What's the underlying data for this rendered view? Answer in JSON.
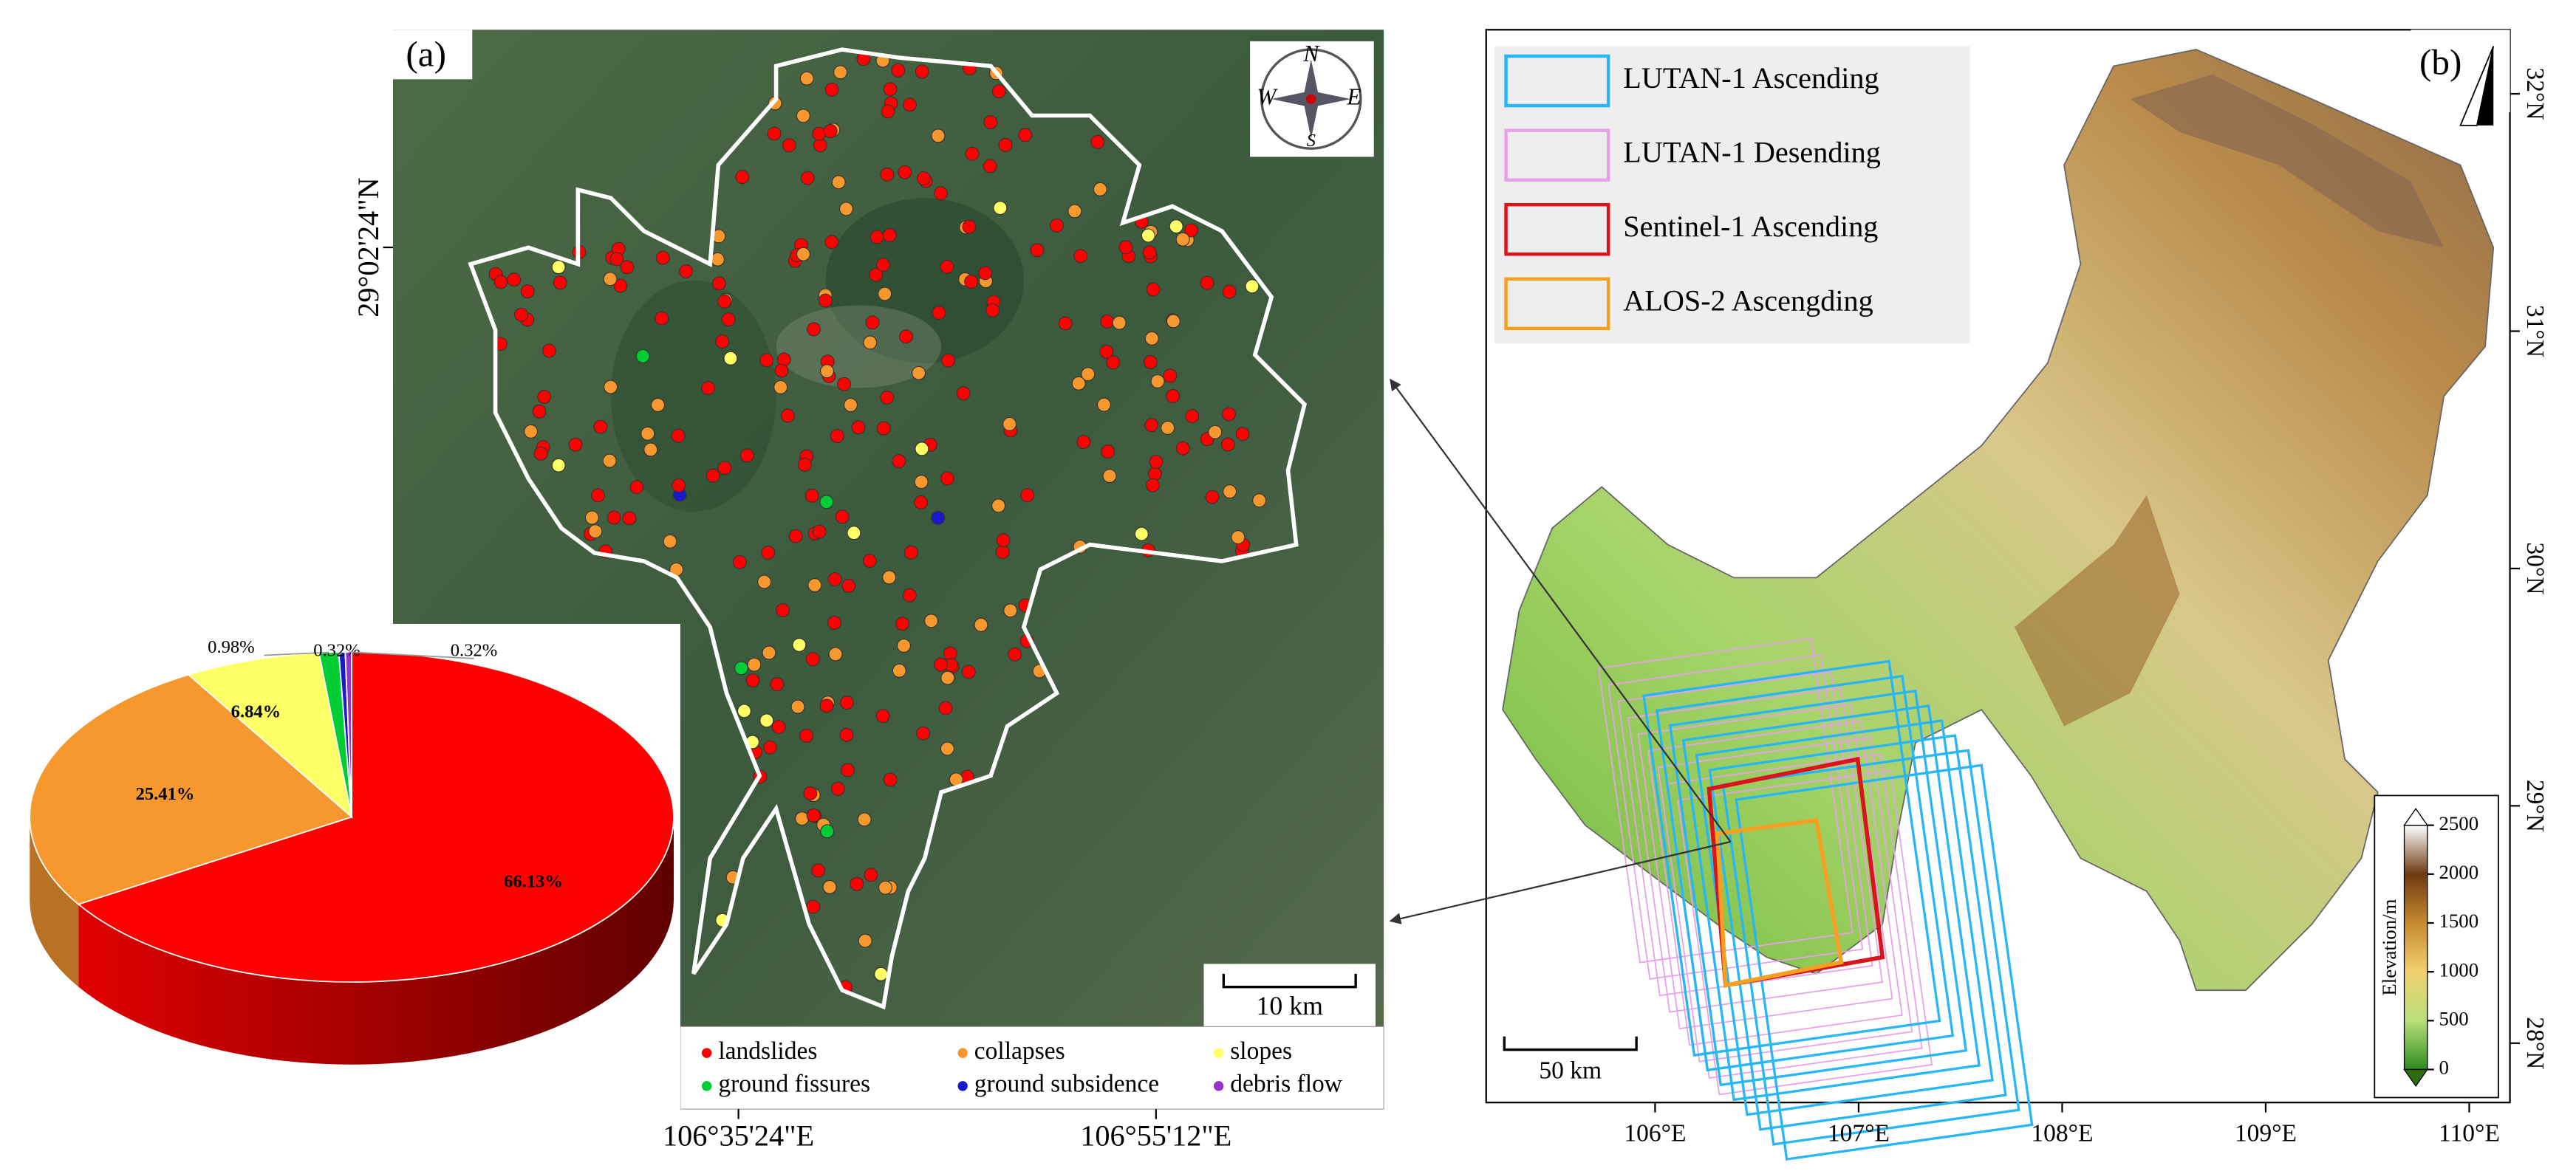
{
  "chart_data": {
    "type": "pie",
    "categories": [
      "landslides",
      "collapses",
      "slopes",
      "ground fissures",
      "ground subsidence",
      "debris flow"
    ],
    "values": [
      66.13,
      25.41,
      6.84,
      0.98,
      0.32,
      0.32
    ],
    "value_labels": [
      "66.13%",
      "25.41%",
      "6.84%",
      "0.98%",
      "0.32%",
      "0.32%"
    ],
    "colors": [
      "#ff0000",
      "#f7982f",
      "#ffff66",
      "#00cc33",
      "#1a1acc",
      "#9933cc"
    ]
  },
  "map_a": {
    "label": "(a)",
    "compass": {
      "n": "N",
      "e": "E",
      "s": "S",
      "w": "W"
    },
    "scale_bar": "10 km",
    "xlim": [
      106.317,
      107.1
    ],
    "xticks": [
      {
        "value": 106.59,
        "label": "106°35'24\"E"
      },
      {
        "value": 106.92,
        "label": "106°55'12\"E"
      }
    ],
    "ylim": [
      28.359,
      29.212
    ],
    "yticks": [
      {
        "value": 29.04,
        "label": "29°02'24\"N"
      }
    ]
  },
  "map_b": {
    "label": "(b)",
    "legend": [
      {
        "name": "LUTAN-1 Ascending",
        "color": "#29b6f6"
      },
      {
        "name": "LUTAN-1 Desending",
        "color": "#e8a0e8"
      },
      {
        "name": "Sentinel-1 Ascending",
        "color": "#d9141c"
      },
      {
        "name": "ALOS-2 Ascengding",
        "color": "#f5a020"
      }
    ],
    "scale_bar": "50 km",
    "xlim": [
      105.17,
      110.2
    ],
    "xticks": [
      {
        "value": 106,
        "label": "106°E"
      },
      {
        "value": 107,
        "label": "107°E"
      },
      {
        "value": 108,
        "label": "108°E"
      },
      {
        "value": 109,
        "label": "109°E"
      },
      {
        "value": 110,
        "label": "110°E"
      }
    ],
    "ylim": [
      27.75,
      32.27
    ],
    "yticks": [
      {
        "value": 28,
        "label": "28°N"
      },
      {
        "value": 29,
        "label": "29°N"
      },
      {
        "value": 30,
        "label": "30°N"
      },
      {
        "value": 31,
        "label": "31°N"
      },
      {
        "value": 32,
        "label": "32°N"
      }
    ],
    "colorbar": {
      "label": "Elevation/m",
      "lim": [
        0,
        2500
      ],
      "ticks": [
        0,
        500,
        1000,
        1500,
        2000,
        2500
      ]
    }
  }
}
